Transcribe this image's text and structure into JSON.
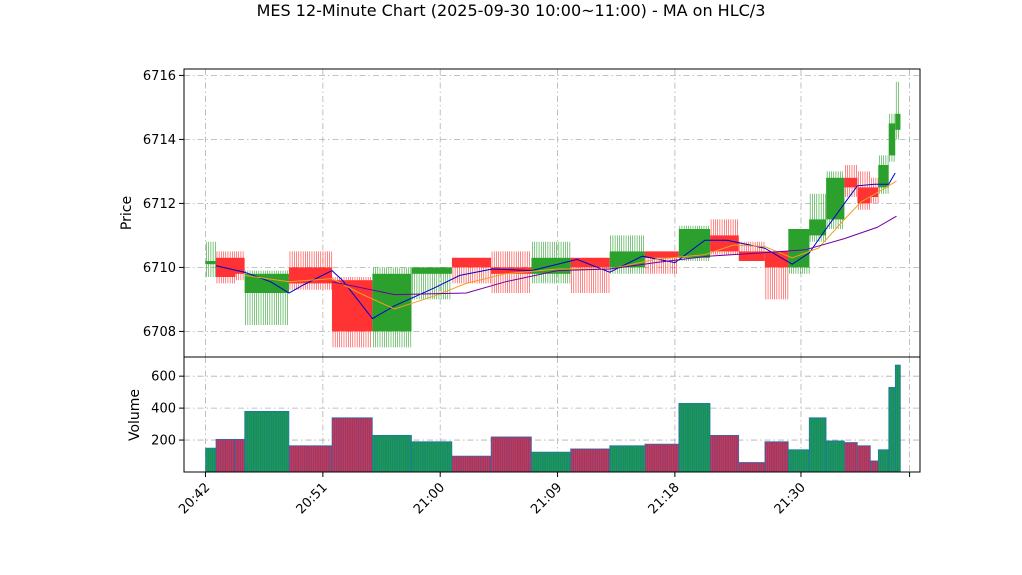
{
  "chart_data": {
    "type": "candlestick",
    "title": "MES 12-Minute Chart (2025-09-30 10:00~11:00) - MA on HLC/3",
    "price_panel": {
      "ylabel": "Price",
      "ylim": [
        6707.2,
        6716.2
      ],
      "yticks": [
        6708,
        6710,
        6712,
        6714,
        6716
      ]
    },
    "volume_panel": {
      "ylabel": "Volume",
      "ylim": [
        0,
        720
      ],
      "yticks": [
        200,
        400,
        600
      ]
    },
    "x_axis": {
      "unit": "minutes",
      "range": [
        20.7,
        22.5
      ],
      "tick_labels": [
        {
          "t": 22,
          "label": "20:42"
        },
        {
          "t": 31,
          "label": "20:51"
        },
        {
          "t": 40,
          "label": "21:00"
        },
        {
          "t": 49,
          "label": "21:09"
        },
        {
          "t": 58,
          "label": "21:18"
        },
        {
          "t": 67.67,
          "label": "21:30"
        },
        {
          "t": 76,
          "label": ""
        }
      ]
    },
    "grid": true,
    "colors": {
      "up": "#2ca02c",
      "down": "#ff3333",
      "volume_up": "#1a8a6a",
      "volume_down": "#9a3a6a",
      "volume_edge": "#1f77b4",
      "ma_fast": "#0000cc",
      "ma_mid": "#f0a020",
      "ma_slow": "#7000a0"
    },
    "bars": [
      {
        "t0": 22.0,
        "t1": 22.8,
        "open": 6710.1,
        "high": 6710.8,
        "low": 6709.7,
        "close": 6710.2,
        "volume": 150
      },
      {
        "t0": 22.8,
        "t1": 24.3,
        "open": 6710.3,
        "high": 6710.5,
        "low": 6709.5,
        "close": 6709.7,
        "volume": 205
      },
      {
        "t0": 24.3,
        "t1": 25.0,
        "open": 6710.3,
        "high": 6710.5,
        "low": 6709.6,
        "close": 6709.8,
        "volume": 205
      },
      {
        "t0": 25.0,
        "t1": 28.4,
        "open": 6709.2,
        "high": 6709.9,
        "low": 6708.2,
        "close": 6709.8,
        "volume": 380
      },
      {
        "t0": 28.4,
        "t1": 31.7,
        "open": 6710.0,
        "high": 6710.5,
        "low": 6709.3,
        "close": 6709.5,
        "volume": 165
      },
      {
        "t0": 31.7,
        "t1": 34.8,
        "open": 6709.6,
        "high": 6709.7,
        "low": 6707.5,
        "close": 6708.0,
        "volume": 340
      },
      {
        "t0": 34.8,
        "t1": 37.8,
        "open": 6708.0,
        "high": 6710.0,
        "low": 6707.5,
        "close": 6709.8,
        "volume": 230
      },
      {
        "t0": 37.8,
        "t1": 40.9,
        "open": 6709.8,
        "high": 6710.0,
        "low": 6709.0,
        "close": 6710.0,
        "volume": 190
      },
      {
        "t0": 40.9,
        "t1": 43.9,
        "open": 6710.3,
        "high": 6710.3,
        "low": 6709.5,
        "close": 6710.0,
        "volume": 100
      },
      {
        "t0": 43.9,
        "t1": 47.0,
        "open": 6710.0,
        "high": 6710.5,
        "low": 6709.2,
        "close": 6709.8,
        "volume": 220
      },
      {
        "t0": 47.0,
        "t1": 50.0,
        "open": 6709.8,
        "high": 6710.8,
        "low": 6709.5,
        "close": 6710.3,
        "volume": 125
      },
      {
        "t0": 50.0,
        "t1": 53.0,
        "open": 6710.3,
        "high": 6710.3,
        "low": 6709.2,
        "close": 6710.0,
        "volume": 145
      },
      {
        "t0": 53.0,
        "t1": 55.7,
        "open": 6710.0,
        "high": 6711.0,
        "low": 6709.8,
        "close": 6710.5,
        "volume": 165
      },
      {
        "t0": 55.7,
        "t1": 58.3,
        "open": 6710.5,
        "high": 6710.5,
        "low": 6709.8,
        "close": 6710.3,
        "volume": 175
      },
      {
        "t0": 58.3,
        "t1": 60.7,
        "open": 6710.3,
        "high": 6711.3,
        "low": 6710.2,
        "close": 6711.2,
        "volume": 430
      },
      {
        "t0": 60.7,
        "t1": 62.9,
        "open": 6711.0,
        "high": 6711.5,
        "low": 6710.4,
        "close": 6710.5,
        "volume": 230
      },
      {
        "t0": 62.9,
        "t1": 64.9,
        "open": 6710.5,
        "high": 6710.8,
        "low": 6710.2,
        "close": 6710.2,
        "volume": 60
      },
      {
        "t0": 64.9,
        "t1": 66.7,
        "open": 6710.5,
        "high": 6710.5,
        "low": 6709.0,
        "close": 6710.0,
        "volume": 190
      },
      {
        "t0": 66.7,
        "t1": 68.3,
        "open": 6710.0,
        "high": 6711.2,
        "low": 6709.8,
        "close": 6711.2,
        "volume": 140
      },
      {
        "t0": 68.3,
        "t1": 69.6,
        "open": 6711.0,
        "high": 6712.3,
        "low": 6710.8,
        "close": 6711.5,
        "volume": 340
      },
      {
        "t0": 69.6,
        "t1": 71.0,
        "open": 6711.5,
        "high": 6713.0,
        "low": 6711.2,
        "close": 6712.8,
        "volume": 195
      },
      {
        "t0": 71.0,
        "t1": 72.0,
        "open": 6712.8,
        "high": 6713.2,
        "low": 6712.2,
        "close": 6712.5,
        "volume": 185
      },
      {
        "t0": 72.0,
        "t1": 73.0,
        "open": 6712.5,
        "high": 6713.0,
        "low": 6711.8,
        "close": 6712.0,
        "volume": 165
      },
      {
        "t0": 73.0,
        "t1": 73.6,
        "open": 6712.5,
        "high": 6712.8,
        "low": 6712.0,
        "close": 6712.2,
        "volume": 70
      },
      {
        "t0": 73.6,
        "t1": 74.4,
        "open": 6712.5,
        "high": 6713.5,
        "low": 6712.3,
        "close": 6713.2,
        "volume": 140
      },
      {
        "t0": 74.4,
        "t1": 74.9,
        "open": 6713.5,
        "high": 6714.8,
        "low": 6713.3,
        "close": 6714.5,
        "volume": 530
      },
      {
        "t0": 74.9,
        "t1": 75.3,
        "open": 6714.3,
        "high": 6715.8,
        "low": 6714.0,
        "close": 6714.8,
        "volume": 670
      }
    ],
    "moving_averages": [
      {
        "key": "ma_fast",
        "points": [
          [
            22.8,
            6710.05
          ],
          [
            25.0,
            6709.85
          ],
          [
            27.0,
            6709.55
          ],
          [
            28.4,
            6709.2
          ],
          [
            29.5,
            6709.45
          ],
          [
            31.7,
            6709.9
          ],
          [
            32.5,
            6709.6
          ],
          [
            34.8,
            6708.4
          ],
          [
            36.5,
            6708.8
          ],
          [
            39.5,
            6709.35
          ],
          [
            41.5,
            6709.75
          ],
          [
            44.0,
            6709.95
          ],
          [
            47.0,
            6709.9
          ],
          [
            49.5,
            6710.15
          ],
          [
            50.5,
            6710.25
          ],
          [
            53.0,
            6709.85
          ],
          [
            55.5,
            6710.35
          ],
          [
            58.0,
            6710.15
          ],
          [
            60.3,
            6710.85
          ],
          [
            62.0,
            6710.85
          ],
          [
            64.9,
            6710.6
          ],
          [
            67.0,
            6710.1
          ],
          [
            68.3,
            6710.45
          ],
          [
            69.5,
            6711.15
          ],
          [
            71.0,
            6712.0
          ],
          [
            72.0,
            6712.55
          ],
          [
            73.3,
            6712.6
          ],
          [
            74.4,
            6712.6
          ],
          [
            74.9,
            6712.95
          ]
        ]
      },
      {
        "key": "ma_mid",
        "points": [
          [
            25.0,
            6709.75
          ],
          [
            28.4,
            6709.55
          ],
          [
            31.7,
            6709.65
          ],
          [
            33.8,
            6709.2
          ],
          [
            36.5,
            6708.7
          ],
          [
            39.5,
            6709.1
          ],
          [
            42.0,
            6709.5
          ],
          [
            45.0,
            6709.8
          ],
          [
            49.0,
            6709.95
          ],
          [
            53.0,
            6709.95
          ],
          [
            56.5,
            6710.25
          ],
          [
            60.3,
            6710.4
          ],
          [
            62.5,
            6710.7
          ],
          [
            64.9,
            6710.65
          ],
          [
            67.0,
            6710.3
          ],
          [
            69.0,
            6710.6
          ],
          [
            71.0,
            6711.5
          ],
          [
            72.3,
            6712.05
          ],
          [
            74.0,
            6712.45
          ],
          [
            75.0,
            6712.7
          ]
        ]
      },
      {
        "key": "ma_slow",
        "points": [
          [
            31.7,
            6709.55
          ],
          [
            36.5,
            6709.15
          ],
          [
            42.0,
            6709.2
          ],
          [
            45.0,
            6709.55
          ],
          [
            49.0,
            6709.9
          ],
          [
            53.0,
            6709.95
          ],
          [
            56.5,
            6710.15
          ],
          [
            60.5,
            6710.35
          ],
          [
            64.5,
            6710.45
          ],
          [
            68.0,
            6710.55
          ],
          [
            71.0,
            6710.9
          ],
          [
            73.5,
            6711.25
          ],
          [
            75.0,
            6711.6
          ]
        ]
      }
    ]
  }
}
